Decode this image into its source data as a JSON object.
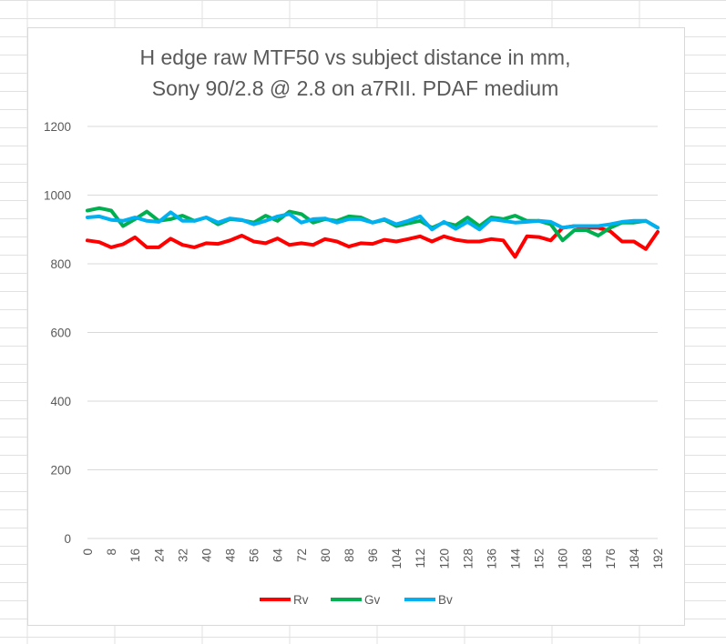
{
  "chart_data": {
    "type": "line",
    "title": "H edge raw MTF50 vs subject distance in mm,",
    "subtitle": "Sony 90/2.8 @ 2.8 on a7RII. PDAF medium",
    "xlabel": "",
    "ylabel": "",
    "ylim": [
      0,
      1200
    ],
    "yticks": [
      "0",
      "200",
      "400",
      "600",
      "800",
      "1000",
      "1200"
    ],
    "x": [
      0,
      4,
      8,
      12,
      16,
      20,
      24,
      28,
      32,
      36,
      40,
      44,
      48,
      52,
      56,
      60,
      64,
      68,
      72,
      76,
      80,
      84,
      88,
      92,
      96,
      100,
      104,
      108,
      112,
      116,
      120,
      124,
      128,
      132,
      136,
      140,
      144,
      148,
      152,
      156,
      160,
      164,
      168,
      172,
      176,
      180,
      184,
      188,
      192
    ],
    "xticks": [
      "0",
      "8",
      "16",
      "24",
      "32",
      "40",
      "48",
      "56",
      "64",
      "72",
      "80",
      "88",
      "96",
      "104",
      "112",
      "120",
      "128",
      "136",
      "144",
      "152",
      "160",
      "168",
      "176",
      "184",
      "192"
    ],
    "grid": true,
    "legend_position": "bottom",
    "series": [
      {
        "name": "Rv",
        "color": "#ff0000",
        "values": [
          868,
          863,
          848,
          857,
          877,
          848,
          848,
          873,
          855,
          848,
          860,
          858,
          868,
          882,
          865,
          860,
          874,
          855,
          860,
          855,
          872,
          865,
          850,
          860,
          858,
          870,
          865,
          872,
          880,
          865,
          880,
          870,
          865,
          865,
          872,
          868,
          820,
          880,
          878,
          868,
          905,
          910,
          905,
          905,
          895,
          865,
          865,
          843,
          893
        ]
      },
      {
        "name": "Gv",
        "color": "#00b050",
        "values": [
          955,
          962,
          955,
          910,
          930,
          952,
          925,
          930,
          940,
          925,
          935,
          915,
          930,
          927,
          920,
          940,
          925,
          952,
          945,
          920,
          930,
          925,
          938,
          935,
          920,
          928,
          910,
          918,
          925,
          905,
          920,
          912,
          935,
          910,
          935,
          930,
          940,
          925,
          925,
          915,
          868,
          898,
          898,
          882,
          905,
          920,
          920,
          925,
          905
        ]
      },
      {
        "name": "Bv",
        "color": "#00b0f0",
        "values": [
          935,
          938,
          928,
          925,
          935,
          925,
          922,
          950,
          925,
          925,
          935,
          920,
          932,
          928,
          915,
          925,
          938,
          945,
          920,
          930,
          932,
          920,
          930,
          930,
          920,
          930,
          915,
          925,
          938,
          900,
          922,
          902,
          922,
          900,
          930,
          925,
          920,
          922,
          925,
          922,
          905,
          910,
          910,
          910,
          915,
          922,
          925,
          925,
          905
        ]
      }
    ]
  }
}
